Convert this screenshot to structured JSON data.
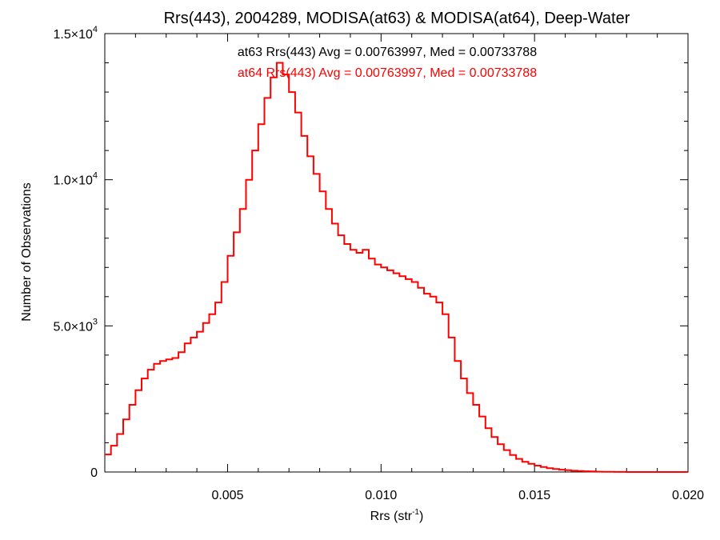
{
  "chart_data": {
    "type": "step",
    "title": "Rrs(443), 2004289, MODISA(at63) & MODISA(at64), Deep-Water",
    "xlabel_main": "Rrs (str",
    "xlabel_sup": "-1",
    "xlabel_tail": ")",
    "ylabel": "Number of Observations",
    "xlim": [
      0.001,
      0.02
    ],
    "ylim": [
      0,
      15000
    ],
    "x_ticks": [
      {
        "value": 0.005,
        "label": "0.005"
      },
      {
        "value": 0.01,
        "label": "0.010"
      },
      {
        "value": 0.015,
        "label": "0.015"
      },
      {
        "value": 0.02,
        "label": "0.020"
      }
    ],
    "y_ticks": [
      {
        "value": 0,
        "label": "0",
        "sup": ""
      },
      {
        "value": 5000,
        "label": "5.0×10",
        "sup": "3"
      },
      {
        "value": 10000,
        "label": "1.0×10",
        "sup": "4"
      },
      {
        "value": 15000,
        "label": "1.5×10",
        "sup": "4"
      }
    ],
    "annotations": [
      {
        "text": "at63 Rrs(443) Avg = 0.00763997, Med = 0.00733788",
        "color": "#000000"
      },
      {
        "text": "at64 Rrs(443) Avg = 0.00763997, Med = 0.00733788",
        "color": "#ff0000"
      }
    ],
    "series": [
      {
        "color": "#ff0000",
        "points": [
          [
            0.001,
            600
          ],
          [
            0.0012,
            900
          ],
          [
            0.0014,
            1300
          ],
          [
            0.0016,
            1800
          ],
          [
            0.0018,
            2300
          ],
          [
            0.002,
            2800
          ],
          [
            0.0022,
            3200
          ],
          [
            0.0024,
            3500
          ],
          [
            0.0026,
            3700
          ],
          [
            0.0028,
            3800
          ],
          [
            0.003,
            3850
          ],
          [
            0.0032,
            3900
          ],
          [
            0.0034,
            4100
          ],
          [
            0.0036,
            4400
          ],
          [
            0.0038,
            4600
          ],
          [
            0.004,
            4800
          ],
          [
            0.0042,
            5100
          ],
          [
            0.0044,
            5400
          ],
          [
            0.0046,
            5800
          ],
          [
            0.0048,
            6500
          ],
          [
            0.005,
            7400
          ],
          [
            0.0052,
            8200
          ],
          [
            0.0054,
            9000
          ],
          [
            0.0056,
            10000
          ],
          [
            0.0058,
            11000
          ],
          [
            0.006,
            11900
          ],
          [
            0.0062,
            12800
          ],
          [
            0.0064,
            13500
          ],
          [
            0.0066,
            14000
          ],
          [
            0.0068,
            13600
          ],
          [
            0.007,
            13000
          ],
          [
            0.0072,
            12300
          ],
          [
            0.0074,
            11500
          ],
          [
            0.0076,
            10800
          ],
          [
            0.0078,
            10200
          ],
          [
            0.008,
            9600
          ],
          [
            0.0082,
            9000
          ],
          [
            0.0084,
            8500
          ],
          [
            0.0086,
            8100
          ],
          [
            0.0088,
            7800
          ],
          [
            0.009,
            7600
          ],
          [
            0.0092,
            7500
          ],
          [
            0.0094,
            7600
          ],
          [
            0.0096,
            7300
          ],
          [
            0.0098,
            7100
          ],
          [
            0.01,
            7000
          ],
          [
            0.0102,
            6900
          ],
          [
            0.0104,
            6800
          ],
          [
            0.0106,
            6700
          ],
          [
            0.0108,
            6600
          ],
          [
            0.011,
            6500
          ],
          [
            0.0112,
            6300
          ],
          [
            0.0114,
            6100
          ],
          [
            0.0116,
            6000
          ],
          [
            0.0118,
            5800
          ],
          [
            0.012,
            5400
          ],
          [
            0.0122,
            4600
          ],
          [
            0.0124,
            3800
          ],
          [
            0.0126,
            3200
          ],
          [
            0.0128,
            2700
          ],
          [
            0.013,
            2300
          ],
          [
            0.0132,
            1900
          ],
          [
            0.0134,
            1500
          ],
          [
            0.0136,
            1200
          ],
          [
            0.0138,
            950
          ],
          [
            0.014,
            750
          ],
          [
            0.0142,
            580
          ],
          [
            0.0144,
            450
          ],
          [
            0.0146,
            350
          ],
          [
            0.0148,
            280
          ],
          [
            0.015,
            220
          ],
          [
            0.0152,
            170
          ],
          [
            0.0154,
            130
          ],
          [
            0.0156,
            100
          ],
          [
            0.0158,
            80
          ],
          [
            0.016,
            60
          ],
          [
            0.0162,
            45
          ],
          [
            0.0164,
            35
          ],
          [
            0.0166,
            25
          ],
          [
            0.0168,
            18
          ],
          [
            0.017,
            12
          ],
          [
            0.0172,
            8
          ],
          [
            0.0174,
            5
          ],
          [
            0.0176,
            3
          ],
          [
            0.0178,
            2
          ],
          [
            0.018,
            1
          ],
          [
            0.0182,
            1
          ],
          [
            0.0184,
            0
          ],
          [
            0.0186,
            0
          ],
          [
            0.0188,
            0
          ],
          [
            0.019,
            0
          ],
          [
            0.0192,
            0
          ],
          [
            0.0194,
            0
          ],
          [
            0.0196,
            0
          ],
          [
            0.0198,
            0
          ]
        ]
      }
    ]
  }
}
